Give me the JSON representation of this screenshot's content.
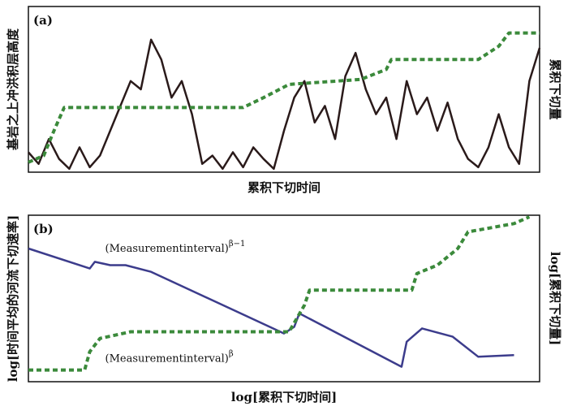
{
  "chart_data": [
    {
      "type": "line",
      "panel": "(a)",
      "ylabel": "基岩之上冲洪积层高度",
      "y2label": "累积下切量",
      "xlabel": "累积下切时间",
      "xlim": [
        0,
        100
      ],
      "ylim": [
        0,
        100
      ],
      "series": [
        {
          "color": "#2a1a1a",
          "dash": false,
          "x": [
            0,
            2,
            4,
            6,
            8,
            10,
            12,
            14,
            16,
            18,
            20,
            22,
            24,
            26,
            28,
            30,
            32,
            34,
            36,
            38,
            40,
            42,
            44,
            46,
            48,
            50,
            52,
            54,
            56,
            58,
            60,
            62,
            64,
            66,
            68,
            70,
            72,
            74,
            76,
            78,
            80,
            82,
            84,
            86,
            88,
            90,
            92,
            94,
            96,
            98,
            100
          ],
          "values": [
            12,
            5,
            20,
            8,
            2,
            15,
            3,
            10,
            25,
            40,
            55,
            50,
            80,
            68,
            45,
            55,
            35,
            5,
            10,
            2,
            12,
            3,
            15,
            8,
            2,
            25,
            45,
            55,
            30,
            40,
            20,
            58,
            72,
            50,
            35,
            45,
            20,
            55,
            35,
            45,
            25,
            42,
            20,
            8,
            3,
            15,
            35,
            15,
            5,
            55,
            75
          ]
        },
        {
          "color": "#3b8a3b",
          "dash": true,
          "x": [
            0,
            3,
            5,
            7,
            42,
            46,
            51,
            65,
            70,
            71,
            88,
            92,
            94,
            100
          ],
          "values": [
            6,
            10,
            25,
            39,
            39,
            45,
            53,
            56,
            62,
            68,
            68,
            76,
            84,
            84
          ]
        }
      ]
    },
    {
      "type": "line",
      "panel": "(b)",
      "ylabel": "log[时间平均的河流下切速率]",
      "y2label": "log[累积下切量]",
      "xlabel": "log[累积下切时间]",
      "xlim": [
        0,
        100
      ],
      "ylim": [
        0,
        100
      ],
      "annotations": [
        {
          "text": "(Measurementinterval)",
          "sup": "β−1",
          "x": 15,
          "y": 80
        },
        {
          "text": "(Measurementinterval)",
          "sup": "β",
          "x": 15,
          "y": 14
        }
      ],
      "series": [
        {
          "color": "#3c3c8c",
          "dash": false,
          "x": [
            0,
            12,
            13,
            16,
            19,
            24,
            50,
            52,
            53,
            73,
            74,
            77,
            83,
            88,
            95
          ],
          "values": [
            80,
            68,
            72,
            70,
            70,
            66,
            29,
            33,
            41,
            9,
            24,
            32,
            27,
            15,
            16
          ]
        },
        {
          "color": "#3b8a3b",
          "dash": true,
          "x": [
            0,
            11,
            12,
            14,
            20,
            51,
            54,
            55,
            75,
            76,
            80,
            84,
            86,
            95,
            98
          ],
          "values": [
            7,
            7,
            18,
            26,
            30,
            30,
            46,
            55,
            55,
            65,
            70,
            80,
            90,
            95,
            99
          ]
        }
      ]
    }
  ]
}
